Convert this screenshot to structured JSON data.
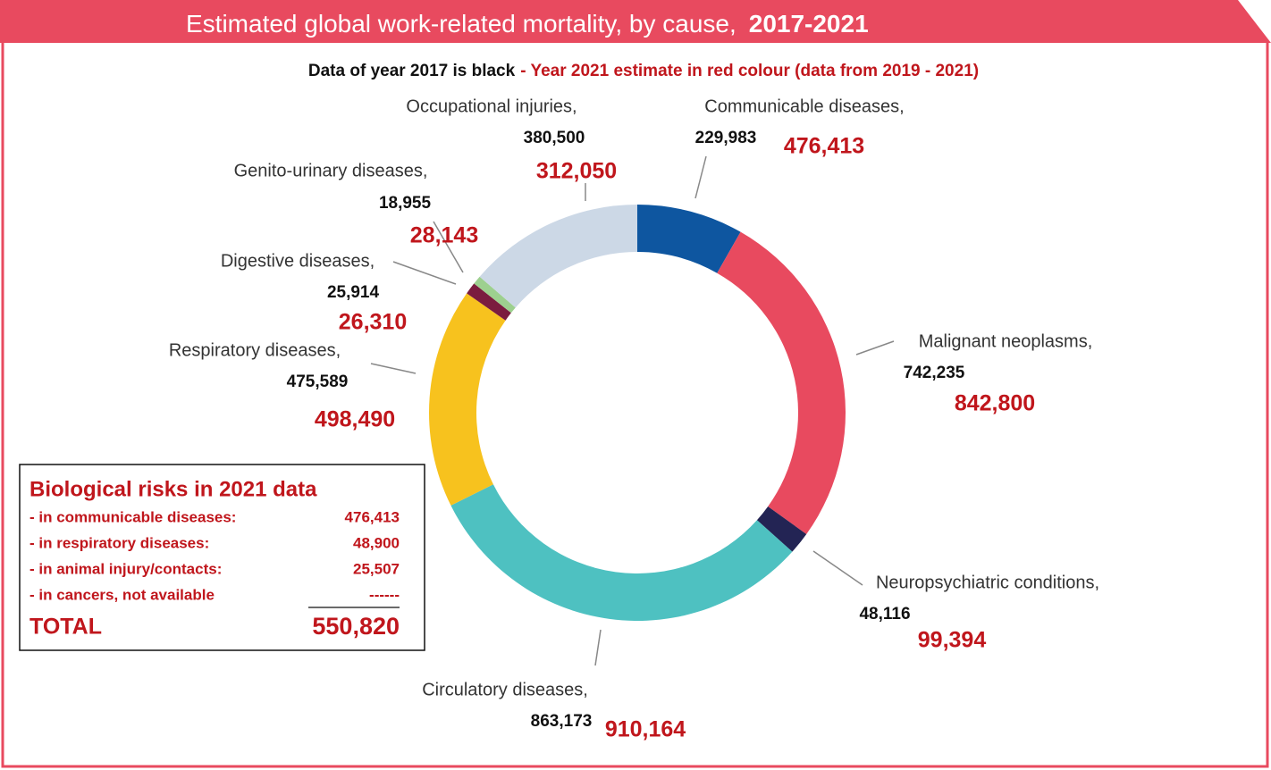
{
  "chart_data": {
    "type": "pie",
    "donut": true,
    "title": "Estimated global work-related mortality, by cause,",
    "title_period": "2017-2021",
    "subtitle": "Data of year 2017 is black",
    "subtitle_red": "- Year 2021 estimate in red colour (data from 2019 - 2021)",
    "categories": [
      "Communicable diseases,",
      "Malignant neoplasms,",
      "Neuropsychiatric conditions,",
      "Circulatory diseases,",
      "Respiratory diseases,",
      "Digestive diseases,",
      "Genito-urinary diseases,",
      "Occupational injuries,"
    ],
    "values": [
      229983,
      742235,
      48116,
      863173,
      475589,
      25914,
      18955,
      380500
    ],
    "value_labels": [
      "229,983",
      "742,235",
      "48,116",
      "863,173",
      "475,589",
      "25,914",
      "18,955",
      "380,500"
    ],
    "values_2021": [
      476413,
      842800,
      99394,
      910164,
      498490,
      26310,
      28143,
      312050
    ],
    "value_labels_2021": [
      "476,413",
      "842,800",
      "99,394",
      "910,164",
      "498,490",
      "26,310",
      "28,143",
      "312,050"
    ],
    "colors": [
      "#0e56a0",
      "#e84a5f",
      "#232454",
      "#4ec1c1",
      "#f7c21e",
      "#7b1c3f",
      "#9dd08f",
      "#ccd8e6"
    ],
    "box": {
      "title": "Biological risks in 2021 data",
      "rows": [
        {
          "label": "- in communicable diseases:",
          "value": 476413,
          "value_label": "476,413"
        },
        {
          "label": "- in respiratory diseases:",
          "value": 48900,
          "value_label": "48,900"
        },
        {
          "label": "- in animal injury/contacts:",
          "value": 25507,
          "value_label": "25,507"
        },
        {
          "label": "- in cancers, not available",
          "value_label": "------"
        }
      ],
      "total_label": "TOTAL",
      "total": 550820,
      "total_value_label": "550,820"
    }
  }
}
